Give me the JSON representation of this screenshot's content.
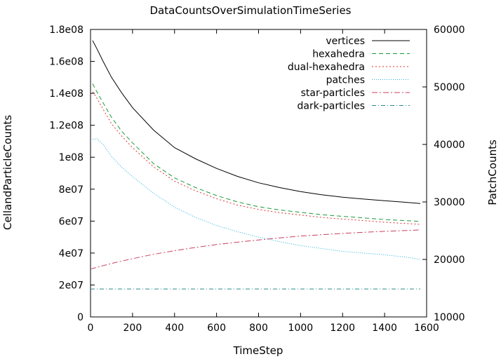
{
  "chart_data": {
    "type": "line",
    "title": "DataCountsOverSimulationTimeSeries",
    "xlabel": "TimeStep",
    "ylabel_left": "CellandParticleCounts",
    "ylabel_right": "PatchCounts",
    "xlim": [
      0,
      1600
    ],
    "ylim_left": [
      0,
      180000000
    ],
    "ylim_right": [
      10000,
      60000
    ],
    "grid": false,
    "legend_placement": "top-right",
    "x_ticks": [
      0,
      200,
      400,
      600,
      800,
      1000,
      1200,
      1400,
      1600
    ],
    "x_tick_labels": [
      "0",
      "200",
      "400",
      "600",
      "800",
      "1000",
      "1200",
      "1400",
      "1600"
    ],
    "y_left_ticks": [
      0,
      20000000,
      40000000,
      60000000,
      80000000,
      100000000,
      120000000,
      140000000,
      160000000,
      180000000
    ],
    "y_left_tick_labels": [
      "0",
      "2e07",
      "4e07",
      "6e07",
      "8e07",
      "1e08",
      "1.2e08",
      "1.4e08",
      "1.6e08",
      "1.8e08"
    ],
    "y_right_ticks": [
      10000,
      20000,
      30000,
      40000,
      50000,
      60000
    ],
    "y_right_tick_labels": [
      "10000",
      "20000",
      "30000",
      "40000",
      "50000",
      "60000"
    ],
    "series": [
      {
        "name": "vertices",
        "axis": "left",
        "color": "#000000",
        "dash": "",
        "x": [
          10,
          30,
          60,
          100,
          150,
          200,
          300,
          400,
          500,
          600,
          700,
          800,
          900,
          1000,
          1100,
          1200,
          1300,
          1400,
          1500,
          1570
        ],
        "y": [
          173000000,
          168000000,
          160000000,
          150000000,
          140000000,
          131000000,
          117000000,
          106000000,
          99000000,
          93000000,
          88000000,
          84000000,
          81000000,
          78500000,
          76500000,
          75000000,
          73800000,
          72800000,
          71800000,
          71000000
        ]
      },
      {
        "name": "hexahedra",
        "axis": "left",
        "color": "#1a9a3a",
        "dash": "6,4",
        "x": [
          10,
          30,
          60,
          100,
          150,
          200,
          300,
          400,
          500,
          600,
          700,
          800,
          900,
          1000,
          1100,
          1200,
          1300,
          1400,
          1500,
          1570
        ],
        "y": [
          146000000,
          141000000,
          134000000,
          125000000,
          116000000,
          109000000,
          96000000,
          87000000,
          81000000,
          76000000,
          72000000,
          69000000,
          67000000,
          65500000,
          64000000,
          63000000,
          62000000,
          61000000,
          60300000,
          59800000
        ]
      },
      {
        "name": "dual-hexahedra",
        "axis": "left",
        "color": "#e03030",
        "dash": "2,3",
        "x": [
          10,
          30,
          60,
          100,
          150,
          200,
          300,
          400,
          500,
          600,
          700,
          800,
          900,
          1000,
          1100,
          1200,
          1300,
          1400,
          1500,
          1570
        ],
        "y": [
          141000000,
          137000000,
          130000000,
          121000000,
          113000000,
          106000000,
          94000000,
          85000000,
          79000000,
          74000000,
          70000000,
          67300000,
          65300000,
          63800000,
          62300000,
          61300000,
          60300000,
          59300000,
          58500000,
          58000000
        ]
      },
      {
        "name": "patches",
        "axis": "right",
        "color": "#20b0e0",
        "dash": "1,2",
        "x": [
          10,
          30,
          60,
          100,
          150,
          200,
          300,
          400,
          500,
          600,
          700,
          800,
          900,
          1000,
          1100,
          1200,
          1300,
          1400,
          1500,
          1570
        ],
        "y": [
          40900,
          41000,
          40000,
          37900,
          36000,
          34400,
          31500,
          29100,
          27300,
          25900,
          24800,
          23900,
          23100,
          22400,
          21900,
          21400,
          21100,
          20800,
          20400,
          20000
        ]
      },
      {
        "name": "star-particles",
        "axis": "left",
        "color": "#c84060",
        "dash": "8,3,2,3",
        "x": [
          0,
          100,
          200,
          300,
          400,
          500,
          600,
          700,
          800,
          900,
          1000,
          1100,
          1200,
          1300,
          1400,
          1500,
          1570
        ],
        "y": [
          30000000,
          33500000,
          36500000,
          39200000,
          41500000,
          43500000,
          45300000,
          46800000,
          48200000,
          49500000,
          50600000,
          51500000,
          52300000,
          53000000,
          53600000,
          54100000,
          54500000
        ]
      },
      {
        "name": "dark-particles",
        "axis": "left",
        "color": "#2a8a8a",
        "dash": "6,3,1,3",
        "x": [
          0,
          1570
        ],
        "y": [
          17500000,
          17500000
        ]
      }
    ]
  }
}
